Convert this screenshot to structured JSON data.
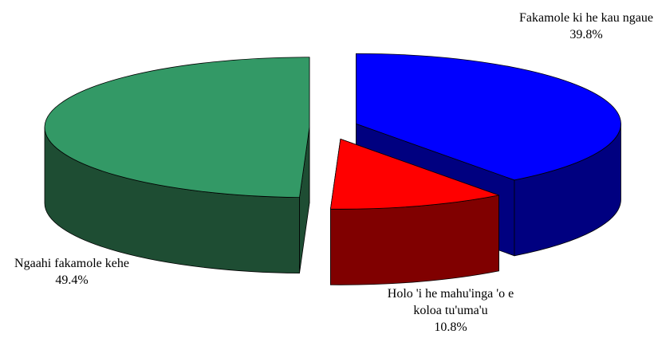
{
  "chart_data": {
    "type": "pie3d",
    "categories": [
      "Fakamole ki he kau ngaue",
      "Holo 'i he mahu'inga 'o e koloa tu'uma'u",
      "Ngaahi fakamole kehe"
    ],
    "values": [
      39.8,
      10.8,
      49.4
    ],
    "value_labels": [
      "39.8%",
      "10.8%",
      "49.4%"
    ],
    "colors": [
      "#0000ff",
      "#ff0000",
      "#339966"
    ],
    "side_colors": [
      "#000080",
      "#800000",
      "#1e4d33"
    ]
  }
}
